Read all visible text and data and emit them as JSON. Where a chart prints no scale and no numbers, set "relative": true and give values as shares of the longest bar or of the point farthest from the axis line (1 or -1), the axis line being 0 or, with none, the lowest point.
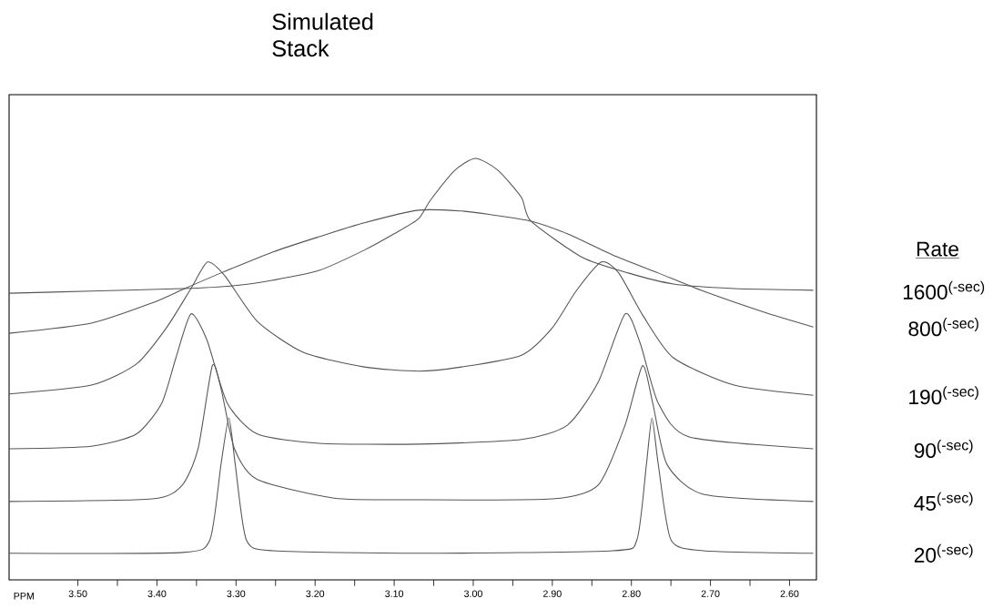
{
  "chart_data": {
    "type": "line",
    "title": "Simulated Stack",
    "xlabel": "PPM",
    "legend_title": "Rate",
    "relative": true,
    "xlim": [
      3.587,
      2.566
    ],
    "xticks": [
      {
        "value": 3.5,
        "label": "3.50"
      },
      {
        "value": 3.45,
        "label": null
      },
      {
        "value": 3.4,
        "label": "3.40"
      },
      {
        "value": 3.35,
        "label": null
      },
      {
        "value": 3.3,
        "label": "3.30"
      },
      {
        "value": 3.25,
        "label": null
      },
      {
        "value": 3.2,
        "label": "3.20"
      },
      {
        "value": 3.15,
        "label": null
      },
      {
        "value": 3.1,
        "label": "3.10"
      },
      {
        "value": 3.05,
        "label": null
      },
      {
        "value": 3.0,
        "label": "3.00"
      },
      {
        "value": 2.95,
        "label": null
      },
      {
        "value": 2.9,
        "label": "2.90"
      },
      {
        "value": 2.85,
        "label": null
      },
      {
        "value": 2.8,
        "label": "2.80"
      },
      {
        "value": 2.75,
        "label": null
      },
      {
        "value": 2.7,
        "label": "2.70"
      },
      {
        "value": 2.65,
        "label": null
      },
      {
        "value": 2.6,
        "label": "2.60"
      }
    ],
    "series": [
      {
        "name": "1600$^{(-sec)}$",
        "color": "#555555",
        "x": [
          3.587,
          3.483,
          3.368,
          3.302,
          3.253,
          3.195,
          3.138,
          3.1,
          3.069,
          3.054,
          3.023,
          2.997,
          2.969,
          2.939,
          2.927,
          2.862,
          2.804,
          2.747,
          2.67,
          2.57
        ],
        "values": [
          0.68,
          0.685,
          0.691,
          0.698,
          0.711,
          0.734,
          0.782,
          0.821,
          0.857,
          0.901,
          0.972,
          1.0,
          0.972,
          0.907,
          0.851,
          0.765,
          0.728,
          0.702,
          0.691,
          0.687
        ]
      },
      {
        "name": "800$^{(-sec)}$",
        "color": "#555555",
        "x": [
          3.587,
          3.483,
          3.406,
          3.365,
          3.319,
          3.253,
          3.195,
          3.138,
          3.069,
          3.015,
          2.977,
          2.927,
          2.881,
          2.824,
          2.766,
          2.709,
          2.632,
          2.57
        ],
        "values": [
          0.585,
          0.609,
          0.657,
          0.691,
          0.728,
          0.778,
          0.814,
          0.847,
          0.877,
          0.875,
          0.866,
          0.851,
          0.821,
          0.771,
          0.728,
          0.685,
          0.635,
          0.6
        ]
      },
      {
        "name": "190$^{(-sec)}$",
        "color": "#555555",
        "x": [
          3.587,
          3.483,
          3.426,
          3.388,
          3.357,
          3.336,
          3.314,
          3.273,
          3.215,
          3.138,
          3.069,
          3.015,
          2.939,
          2.9,
          2.87,
          2.838,
          2.816,
          2.785,
          2.747,
          2.67,
          2.57
        ],
        "values": [
          0.441,
          0.462,
          0.512,
          0.598,
          0.691,
          0.754,
          0.721,
          0.613,
          0.54,
          0.505,
          0.495,
          0.505,
          0.533,
          0.598,
          0.685,
          0.754,
          0.728,
          0.626,
          0.527,
          0.462,
          0.438
        ]
      },
      {
        "name": "90$^{(-sec)}$",
        "color": "#555555",
        "x": [
          3.587,
          3.483,
          3.426,
          3.394,
          3.376,
          3.357,
          3.337,
          3.311,
          3.273,
          3.195,
          3.069,
          2.939,
          2.881,
          2.842,
          2.808,
          2.789,
          2.766,
          2.727,
          2.57
        ],
        "values": [
          0.311,
          0.317,
          0.346,
          0.419,
          0.527,
          0.631,
          0.57,
          0.419,
          0.346,
          0.324,
          0.322,
          0.333,
          0.367,
          0.469,
          0.631,
          0.562,
          0.419,
          0.339,
          0.311
        ]
      },
      {
        "name": "45$^{(-sec)}$",
        "color": "#555555",
        "x": [
          3.587,
          3.406,
          3.368,
          3.348,
          3.33,
          3.319,
          3.302,
          3.273,
          3.176,
          3.069,
          2.9,
          2.842,
          2.808,
          2.786,
          2.773,
          2.755,
          2.709,
          2.57
        ],
        "values": [
          0.186,
          0.192,
          0.225,
          0.311,
          0.508,
          0.454,
          0.311,
          0.238,
          0.194,
          0.19,
          0.192,
          0.225,
          0.367,
          0.508,
          0.419,
          0.274,
          0.203,
          0.186
        ]
      },
      {
        "name": "20$^{(-sec)}$",
        "color": "#555555",
        "x": [
          3.587,
          3.368,
          3.333,
          3.319,
          3.309,
          3.301,
          3.287,
          3.253,
          3.069,
          2.824,
          2.793,
          2.781,
          2.774,
          2.766,
          2.75,
          2.709,
          2.57
        ],
        "values": [
          0.063,
          0.065,
          0.095,
          0.274,
          0.384,
          0.274,
          0.095,
          0.069,
          0.063,
          0.069,
          0.095,
          0.274,
          0.384,
          0.274,
          0.095,
          0.069,
          0.063
        ]
      }
    ]
  }
}
